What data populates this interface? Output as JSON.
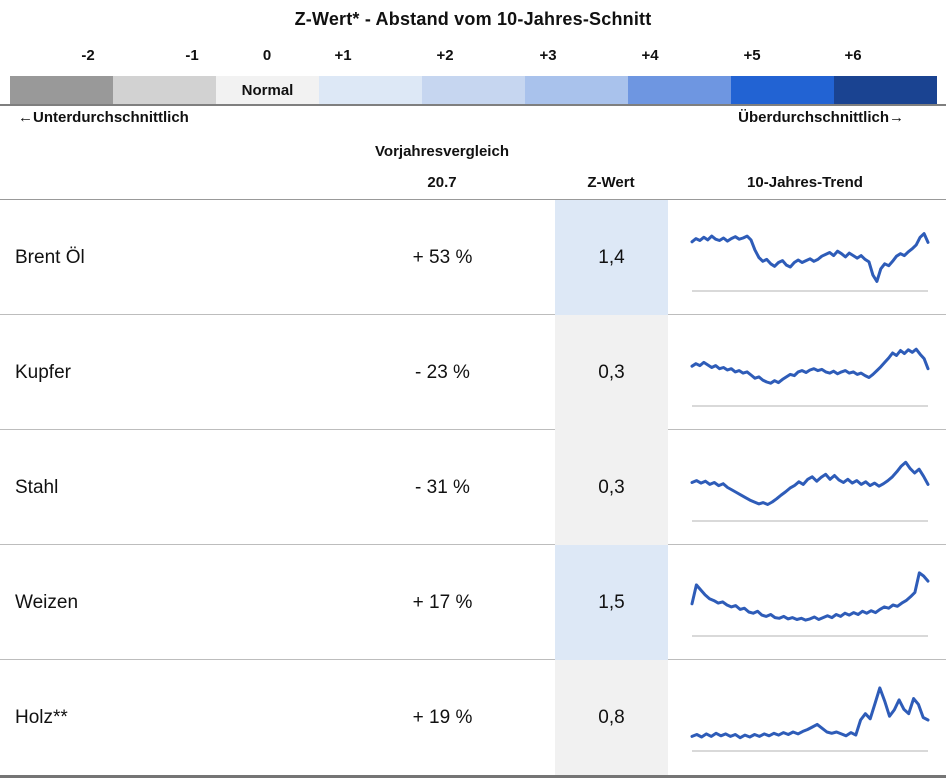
{
  "title": "Z-Wert* - Abstand vom 10-Jahres-Schnitt",
  "scale": {
    "ticks": [
      "-2",
      "-1",
      "0",
      "+1",
      "+2",
      "+3",
      "+4",
      "+5",
      "+6"
    ],
    "colors": [
      "#999999",
      "#d2d2d2",
      "#f2f2f2",
      "#dde8f6",
      "#c6d6f0",
      "#a9c2ec",
      "#6e96e1",
      "#2263d3",
      "#1a4391"
    ],
    "normal_label": "Normal",
    "left_label": "←Unterdurchschnittlich",
    "right_label": "Überdurchschnittlich→"
  },
  "header": {
    "group": "Vorjahresvergleich",
    "date": "20.7",
    "z": "Z-Wert",
    "trend": "10-Jahres-Trend"
  },
  "line_color": "#2e5cb8",
  "z_colors": {
    "above": "#dde8f6",
    "normal": "#f1f1f1"
  },
  "rows": [
    {
      "name": "Brent Öl",
      "change": "+ 53 %",
      "z": "1,4",
      "z_bg": "#dde8f6"
    },
    {
      "name": "Kupfer",
      "change": "- 23 %",
      "z": "0,3",
      "z_bg": "#f1f1f1"
    },
    {
      "name": "Stahl",
      "change": "- 31 %",
      "z": "0,3",
      "z_bg": "#f1f1f1"
    },
    {
      "name": "Weizen",
      "change": "+ 17 %",
      "z": "1,5",
      "z_bg": "#dde8f6"
    },
    {
      "name": "Holz**",
      "change": "+ 19 %",
      "z": "0,8",
      "z_bg": "#f1f1f1"
    }
  ],
  "chart_data": {
    "type": "line",
    "title": "Z-Wert* - Abstand vom 10-Jahres-Schnitt",
    "subtitle": "10-Jahres-Trend sparklines per commodity; y values normalized 0-100 (0 = gray baseline, 100 = top of sparkline area); x = 10-year time span",
    "legend_position": "none",
    "grid": false,
    "color_scale": {
      "tick_labels": [
        "-2",
        "-1",
        "0",
        "+1",
        "+2",
        "+3",
        "+4",
        "+5",
        "+6"
      ],
      "segment_colors": [
        "#999999",
        "#d2d2d2",
        "#f2f2f2",
        "#dde8f6",
        "#c6d6f0",
        "#a9c2ec",
        "#6e96e1",
        "#2263d3",
        "#1a4391"
      ],
      "zero_label": "Normal",
      "low_end_label": "←Unterdurchschnittlich",
      "high_end_label": "Überdurchschnittlich→"
    },
    "table_values": {
      "categories": [
        "Brent Öl",
        "Kupfer",
        "Stahl",
        "Weizen",
        "Holz**"
      ],
      "vorjahresvergleich_20_7_pct": [
        53,
        -23,
        -31,
        17,
        19
      ],
      "z_wert": [
        1.4,
        0.3,
        0.3,
        1.5,
        0.8
      ]
    },
    "series": [
      {
        "name": "Brent Öl",
        "values": [
          75,
          80,
          77,
          82,
          78,
          84,
          79,
          77,
          81,
          76,
          80,
          83,
          79,
          81,
          84,
          78,
          62,
          50,
          44,
          47,
          40,
          36,
          42,
          45,
          38,
          35,
          42,
          46,
          42,
          45,
          48,
          44,
          47,
          52,
          55,
          58,
          53,
          60,
          56,
          51,
          57,
          53,
          49,
          53,
          47,
          43,
          22,
          12,
          32,
          40,
          37,
          44,
          52,
          56,
          53,
          59,
          64,
          70,
          82,
          88,
          74
        ]
      },
      {
        "name": "Kupfer",
        "values": [
          60,
          64,
          61,
          66,
          62,
          58,
          61,
          56,
          58,
          54,
          56,
          51,
          53,
          49,
          51,
          46,
          41,
          43,
          38,
          35,
          33,
          37,
          34,
          39,
          43,
          47,
          45,
          51,
          53,
          50,
          54,
          56,
          53,
          55,
          51,
          49,
          52,
          48,
          51,
          53,
          49,
          51,
          47,
          49,
          45,
          42,
          47,
          53,
          59,
          66,
          73,
          81,
          77,
          85,
          80,
          86,
          82,
          87,
          79,
          72,
          56
        ]
      },
      {
        "name": "Stahl",
        "values": [
          58,
          61,
          57,
          60,
          55,
          58,
          53,
          56,
          50,
          46,
          42,
          38,
          34,
          30,
          27,
          24,
          26,
          23,
          27,
          32,
          38,
          43,
          49,
          53,
          59,
          55,
          63,
          67,
          60,
          66,
          71,
          63,
          69,
          62,
          58,
          63,
          57,
          61,
          55,
          59,
          53,
          57,
          52,
          56,
          61,
          67,
          75,
          84,
          90,
          80,
          73,
          79,
          68,
          55
        ]
      },
      {
        "name": "Weizen",
        "values": [
          48,
          78,
          70,
          62,
          56,
          53,
          49,
          51,
          46,
          43,
          45,
          39,
          41,
          35,
          33,
          36,
          30,
          28,
          31,
          26,
          25,
          28,
          24,
          26,
          23,
          25,
          22,
          24,
          27,
          23,
          26,
          29,
          26,
          31,
          28,
          33,
          30,
          34,
          31,
          36,
          33,
          37,
          34,
          39,
          43,
          41,
          46,
          44,
          49,
          53,
          59,
          66,
          97,
          92,
          84
        ]
      },
      {
        "name": "Holz**",
        "values": [
          20,
          23,
          19,
          24,
          20,
          25,
          21,
          24,
          20,
          23,
          18,
          22,
          19,
          23,
          20,
          24,
          21,
          25,
          22,
          26,
          23,
          27,
          24,
          28,
          31,
          35,
          39,
          33,
          27,
          25,
          27,
          24,
          21,
          26,
          22,
          46,
          56,
          48,
          72,
          97,
          76,
          52,
          62,
          78,
          63,
          56,
          80,
          71,
          50,
          46
        ]
      }
    ]
  }
}
